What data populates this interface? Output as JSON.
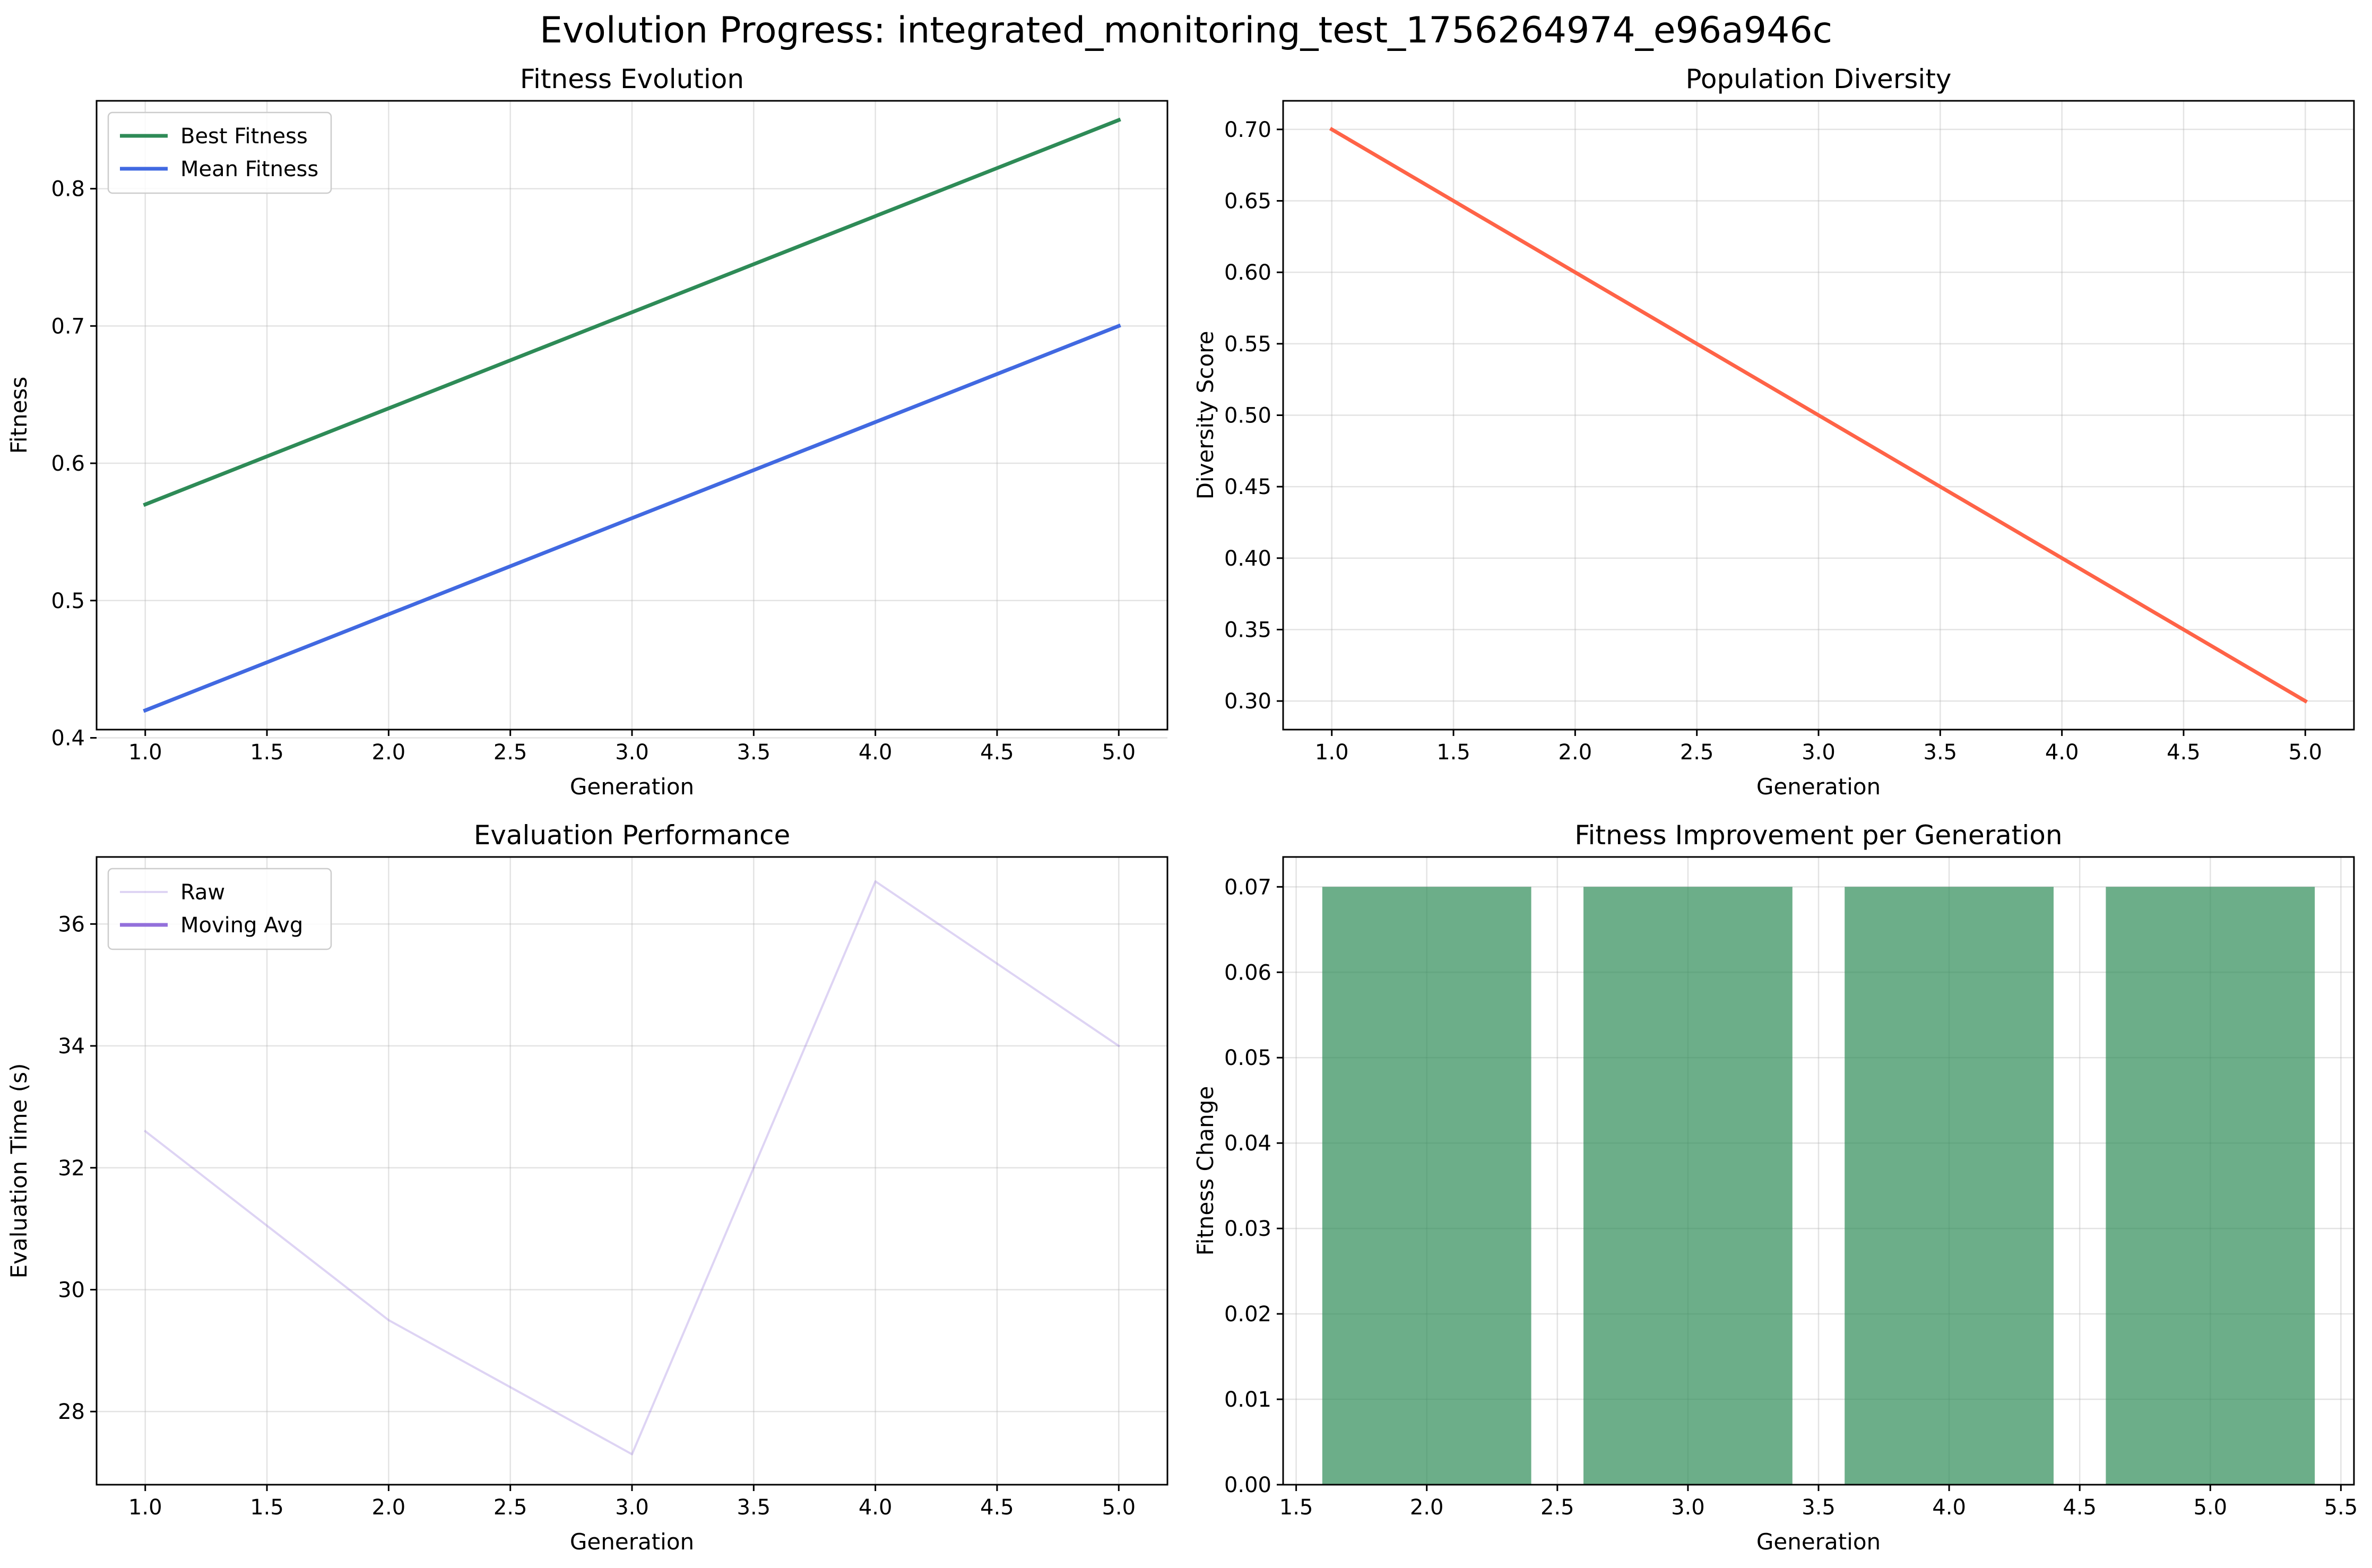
{
  "figure": {
    "title": "Evolution Progress: integrated_monitoring_test_1756264974_e96a946c"
  },
  "chart_data": [
    {
      "type": "line",
      "title": "Fitness Evolution",
      "xlabel": "Generation",
      "ylabel": "Fitness",
      "xlim": [
        0.8,
        5.2
      ],
      "ylim": [
        0.406,
        0.864
      ],
      "xticks": [
        1.0,
        1.5,
        2.0,
        2.5,
        3.0,
        3.5,
        4.0,
        4.5,
        5.0
      ],
      "yticks": [
        0.4,
        0.5,
        0.6,
        0.7,
        0.8
      ],
      "grid": true,
      "legend": "upper left",
      "series": [
        {
          "name": "Best Fitness",
          "color": "#2e8b57",
          "x": [
            1,
            2,
            3,
            4,
            5
          ],
          "values": [
            0.57,
            0.64,
            0.71,
            0.78,
            0.85
          ]
        },
        {
          "name": "Mean Fitness",
          "color": "#4169e1",
          "x": [
            1,
            2,
            3,
            4,
            5
          ],
          "values": [
            0.42,
            0.49,
            0.56,
            0.63,
            0.7
          ]
        }
      ]
    },
    {
      "type": "line",
      "title": "Population Diversity",
      "xlabel": "Generation",
      "ylabel": "Diversity Score",
      "xlim": [
        0.8,
        5.2
      ],
      "ylim": [
        0.28,
        0.72
      ],
      "xticks": [
        1.0,
        1.5,
        2.0,
        2.5,
        3.0,
        3.5,
        4.0,
        4.5,
        5.0
      ],
      "yticks": [
        0.3,
        0.35,
        0.4,
        0.45,
        0.5,
        0.55,
        0.6,
        0.65,
        0.7
      ],
      "grid": true,
      "series": [
        {
          "color": "#ff6347",
          "x": [
            1,
            2,
            3,
            4,
            5
          ],
          "values": [
            0.7,
            0.6,
            0.5,
            0.4,
            0.3
          ]
        }
      ]
    },
    {
      "type": "line",
      "title": "Evaluation Performance",
      "xlabel": "Generation",
      "ylabel": "Evaluation Time (s)",
      "xlim": [
        0.8,
        5.2
      ],
      "ylim": [
        26.8,
        37.1
      ],
      "xticks": [
        1.0,
        1.5,
        2.0,
        2.5,
        3.0,
        3.5,
        4.0,
        4.5,
        5.0
      ],
      "yticks": [
        28,
        30,
        32,
        34,
        36
      ],
      "ytick_decimals": 0,
      "grid": true,
      "legend": "upper left",
      "series": [
        {
          "name": "Raw",
          "color": "#9370db",
          "opacity": 0.3,
          "x": [
            1,
            2,
            3,
            4,
            5
          ],
          "values": [
            32.6,
            29.5,
            27.3,
            36.7,
            34.0
          ]
        },
        {
          "name": "Moving Avg",
          "color": "#9370db",
          "x": [],
          "values": []
        }
      ]
    },
    {
      "type": "bar",
      "title": "Fitness Improvement per Generation",
      "xlabel": "Generation",
      "ylabel": "Fitness Change",
      "xlim": [
        1.45,
        5.55
      ],
      "ylim": [
        0.0,
        0.0735
      ],
      "xticks": [
        1.5,
        2.0,
        2.5,
        3.0,
        3.5,
        4.0,
        4.5,
        5.0,
        5.5
      ],
      "yticks": [
        0.0,
        0.01,
        0.02,
        0.03,
        0.04,
        0.05,
        0.06,
        0.07
      ],
      "grid": true,
      "bar_width": 0.8,
      "color": "#2e8b57",
      "opacity": 0.7,
      "x": [
        2,
        3,
        4,
        5
      ],
      "values": [
        0.07,
        0.07,
        0.07,
        0.07
      ]
    }
  ]
}
